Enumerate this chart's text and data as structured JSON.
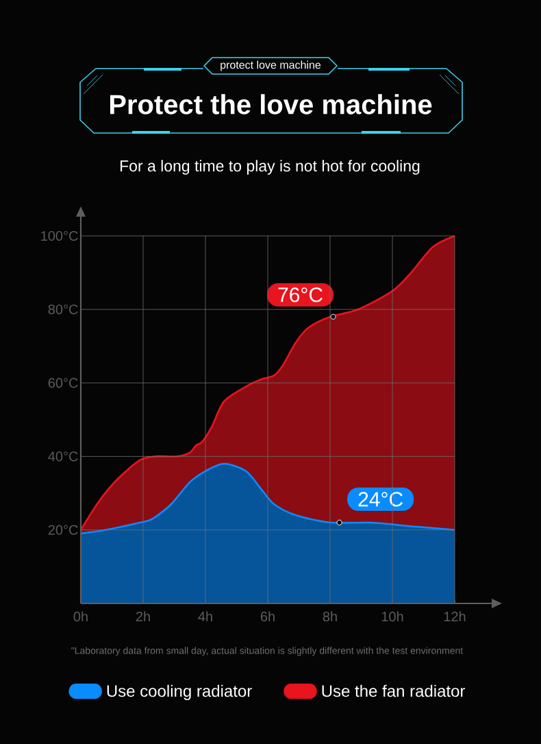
{
  "chart_data": {
    "type": "area",
    "title": "Protect the love machine",
    "subtitle": "For a long time to play is not hot for cooling",
    "series": [
      {
        "name": "Use cooling radiator",
        "color": "#0a8cff",
        "x": [
          0,
          0.8,
          1.9,
          2.3,
          2.9,
          3.5,
          4.0,
          4.6,
          5.3,
          5.8,
          6.2,
          6.9,
          8.0,
          9.3,
          10.6,
          12
        ],
        "values": [
          19,
          20,
          22,
          23,
          27,
          33,
          36,
          38,
          36,
          31,
          27,
          24,
          22,
          22,
          21,
          20
        ]
      },
      {
        "name": "Use the fan radiator",
        "color": "#e8141e",
        "x": [
          0,
          0.6,
          1.2,
          1.9,
          2.4,
          3.1,
          3.5,
          3.7,
          3.9,
          4.2,
          4.6,
          5.3,
          5.8,
          6.2,
          6.5,
          6.9,
          7.3,
          8.0,
          8.9,
          10.0,
          10.6,
          11.3,
          12
        ],
        "values": [
          20,
          28,
          34,
          39,
          40,
          40,
          41,
          43,
          44,
          48,
          55,
          59,
          61,
          62,
          65,
          71,
          75,
          78,
          80,
          85,
          90,
          97,
          100
        ]
      }
    ],
    "xlim": [
      0,
      12
    ],
    "ylim": [
      0,
      100
    ],
    "xticks": [
      {
        "value": 0,
        "label": "0h"
      },
      {
        "value": 2,
        "label": "2h"
      },
      {
        "value": 4,
        "label": "4h"
      },
      {
        "value": 6,
        "label": "6h"
      },
      {
        "value": 8,
        "label": "8h"
      },
      {
        "value": 10,
        "label": "10h"
      },
      {
        "value": 12,
        "label": "12h"
      }
    ],
    "yticks": [
      {
        "value": 20,
        "label": "20°C"
      },
      {
        "value": 40,
        "label": "40°C"
      },
      {
        "value": 60,
        "label": "60°C"
      },
      {
        "value": 80,
        "label": "80°C"
      },
      {
        "value": 100,
        "label": "100°C"
      }
    ],
    "grid": true,
    "legend": "bottom",
    "annotations": [
      "protect love machine",
      {
        "text": "76°C",
        "x": 8.1,
        "y": 78
      },
      {
        "text": "24°C",
        "x": 8.3,
        "y": 22
      },
      "\"Laboratory data from small day, actual situation is slightly different with the test environment"
    ]
  }
}
